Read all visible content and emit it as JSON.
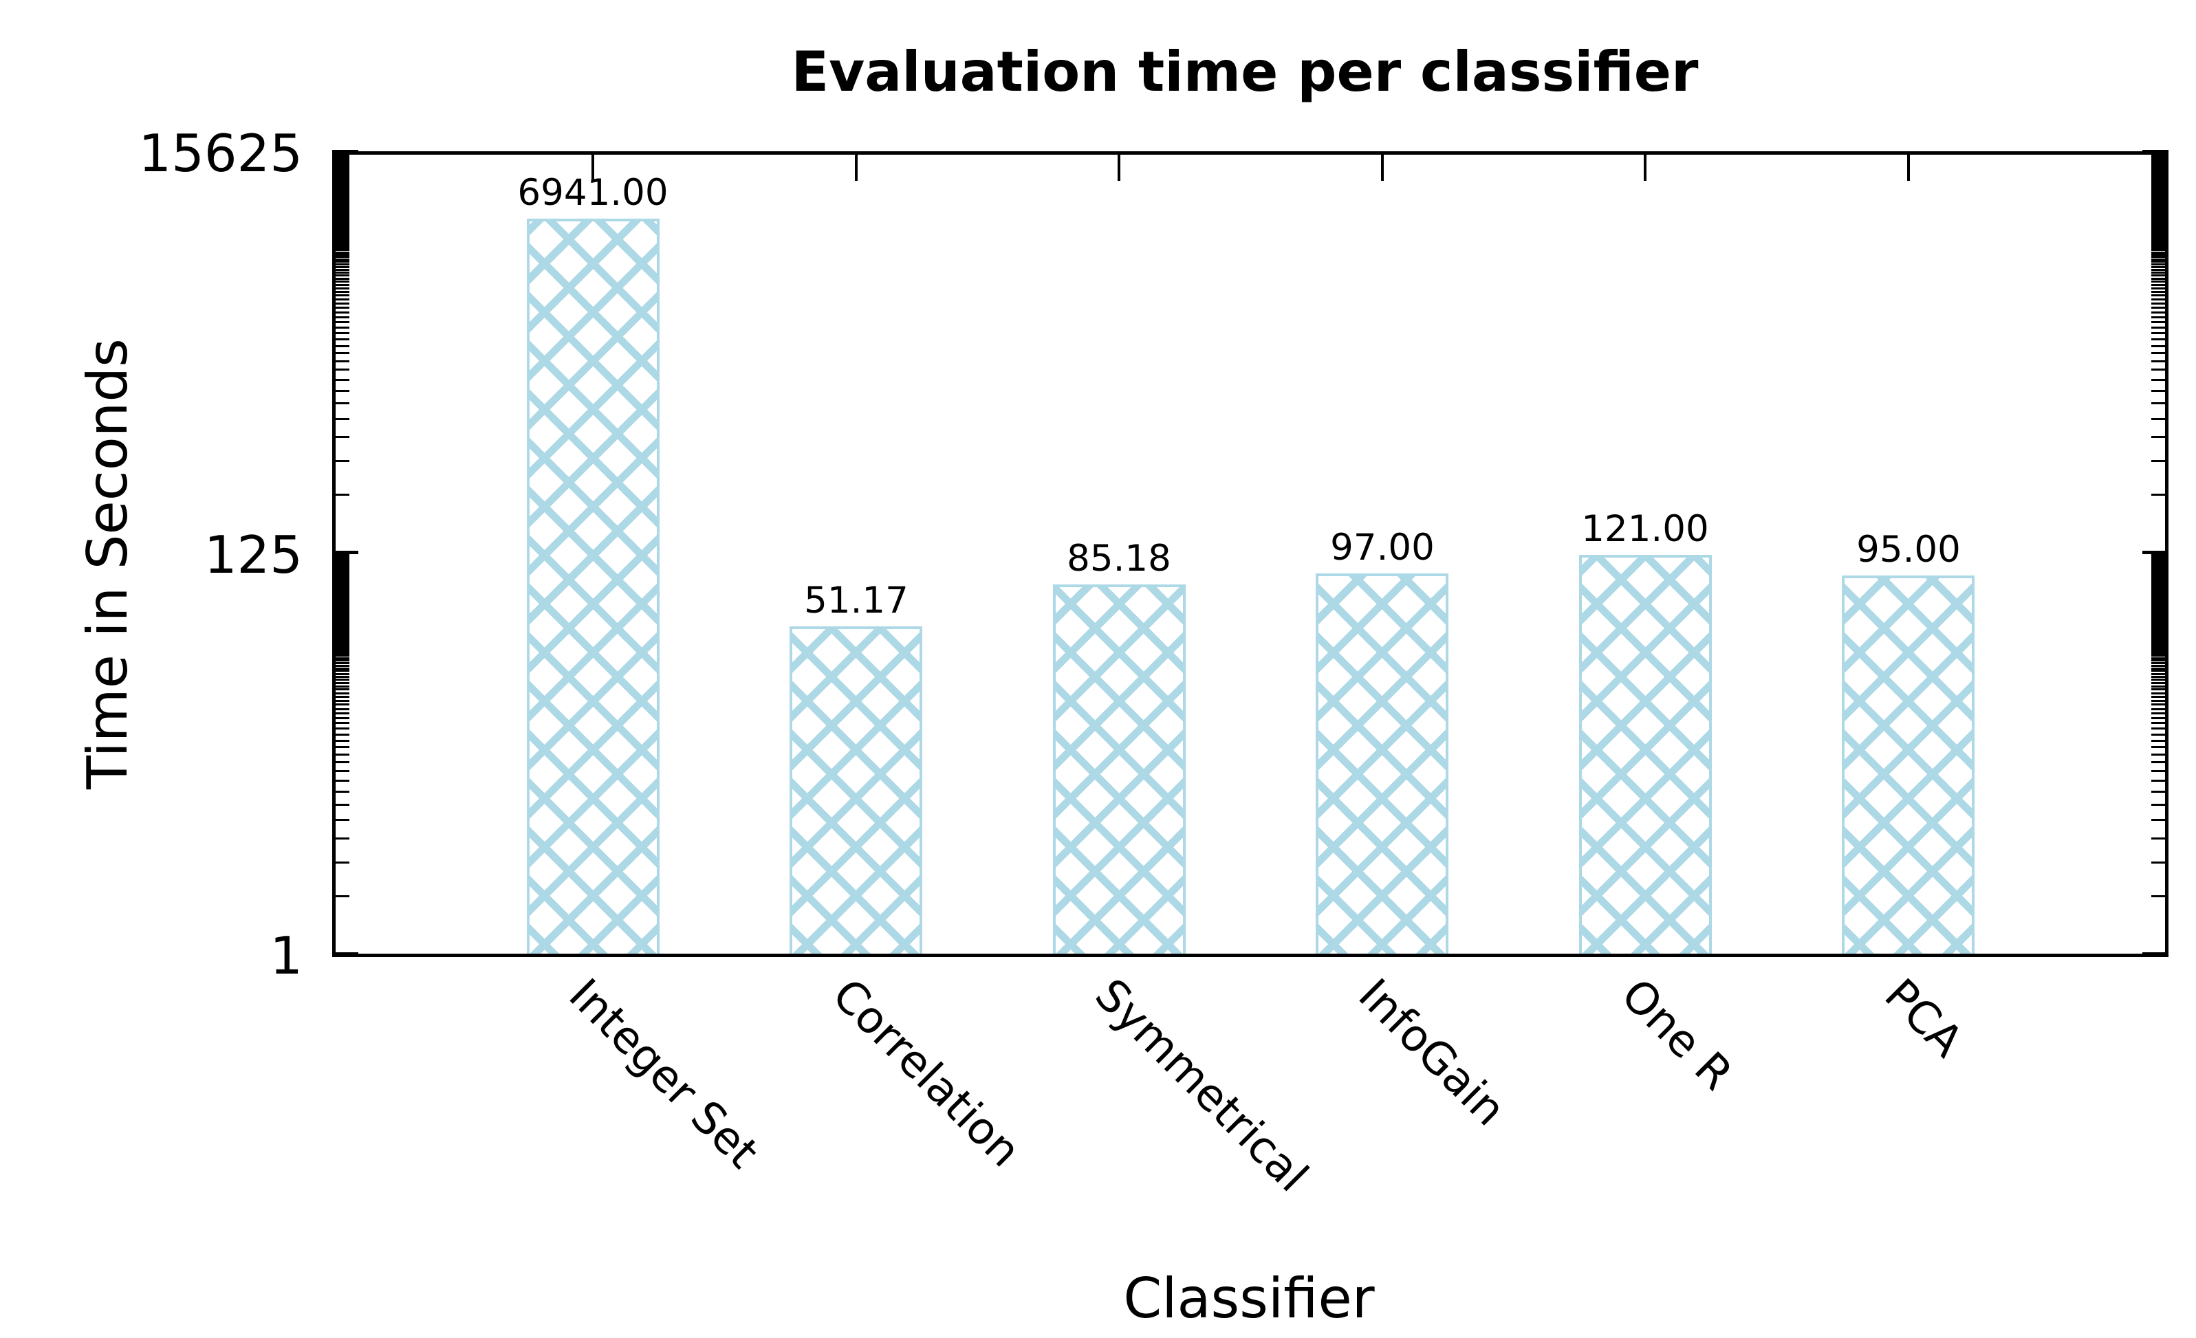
{
  "chart_data": {
    "type": "bar",
    "title": "Evaluation time per classifier",
    "xlabel": "Classifier",
    "ylabel": "Time in Seconds",
    "categories": [
      "Integer Set",
      "Correlation",
      "Symmetrical",
      "InfoGain",
      "One R",
      "PCA"
    ],
    "values": [
      6941.0,
      51.17,
      85.18,
      97.0,
      121.0,
      95.0
    ],
    "value_labels": [
      "6941.00",
      "51.17",
      "85.18",
      "97.00",
      "121.00",
      "95.00"
    ],
    "y_scale": "log",
    "y_tick_labels": [
      "1",
      "125",
      "15625"
    ],
    "y_tick_values": [
      1,
      125,
      15625
    ],
    "ylim": [
      1,
      15625
    ],
    "grid": false,
    "legend_position": "none",
    "bar_color": "#ADD8E6",
    "bar_fill_style": "crosshatch",
    "text_color": "#000000"
  }
}
